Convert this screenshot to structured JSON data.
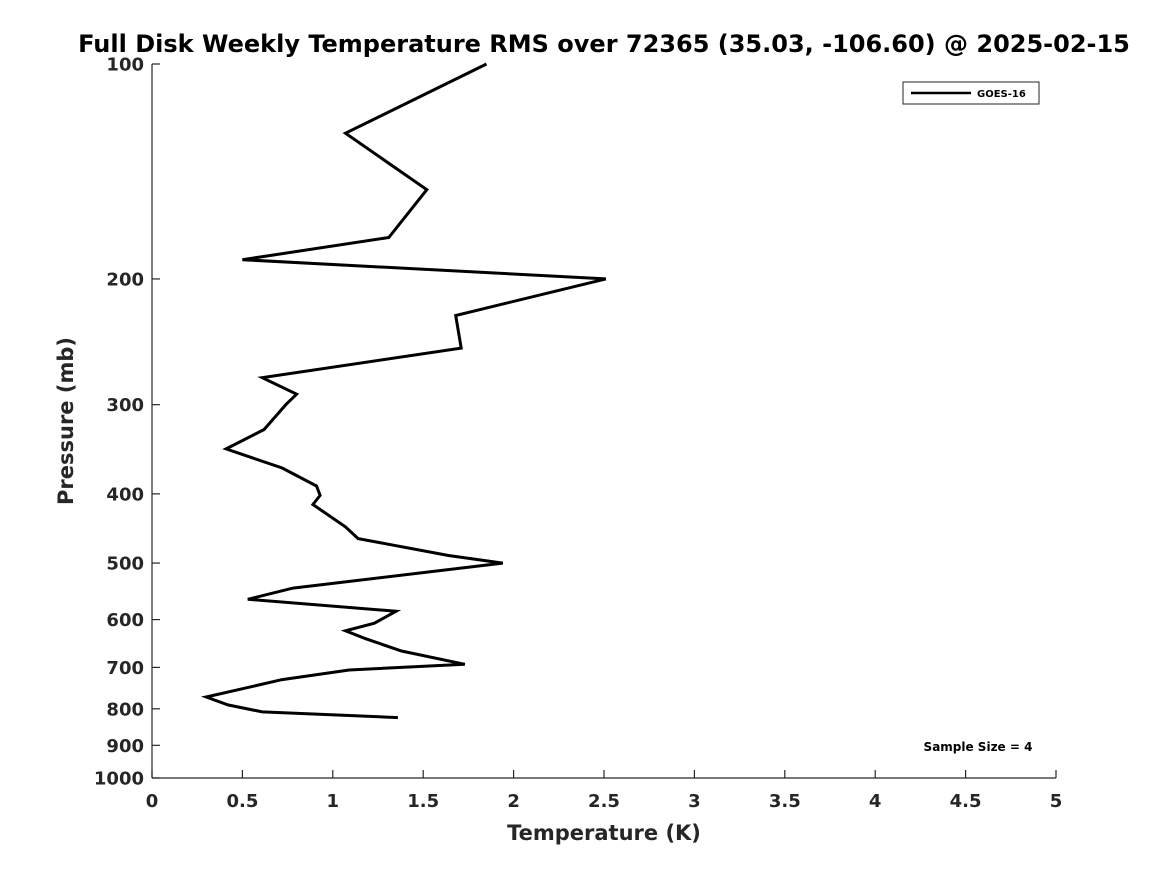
{
  "chart_data": {
    "type": "line",
    "title": "Full Disk Weekly Temperature RMS over 72365 (35.03, -106.60) @ 2025-02-15",
    "xlabel": "Temperature (K)",
    "ylabel": "Pressure (mb)",
    "xlim": [
      0,
      5
    ],
    "ylim": [
      1000,
      100
    ],
    "y_scale": "log",
    "y_inverted": true,
    "grid": false,
    "legend_placement": "top-right",
    "x_ticks": [
      0,
      0.5,
      1,
      1.5,
      2,
      2.5,
      3,
      3.5,
      4,
      4.5,
      5
    ],
    "x_tick_labels": [
      "0",
      "0.5",
      "1",
      "1.5",
      "2",
      "2.5",
      "3",
      "3.5",
      "4",
      "4.5",
      "5"
    ],
    "y_ticks": [
      100,
      200,
      300,
      400,
      500,
      600,
      700,
      800,
      900,
      1000
    ],
    "y_tick_labels": [
      "100",
      "200",
      "300",
      "400",
      "500",
      "600",
      "700",
      "800",
      "900",
      "1000"
    ],
    "series": [
      {
        "name": "GOES-16",
        "color": "#000000",
        "points": [
          {
            "x": 1.85,
            "y": 100
          },
          {
            "x": 1.07,
            "y": 125
          },
          {
            "x": 1.52,
            "y": 150
          },
          {
            "x": 1.31,
            "y": 175
          },
          {
            "x": 0.5,
            "y": 188
          },
          {
            "x": 2.51,
            "y": 200
          },
          {
            "x": 1.68,
            "y": 225
          },
          {
            "x": 1.71,
            "y": 250
          },
          {
            "x": 0.61,
            "y": 275
          },
          {
            "x": 0.8,
            "y": 290
          },
          {
            "x": 0.74,
            "y": 300
          },
          {
            "x": 0.62,
            "y": 325
          },
          {
            "x": 0.41,
            "y": 346
          },
          {
            "x": 0.72,
            "y": 368
          },
          {
            "x": 0.91,
            "y": 390
          },
          {
            "x": 0.93,
            "y": 402
          },
          {
            "x": 0.89,
            "y": 414
          },
          {
            "x": 1.07,
            "y": 445
          },
          {
            "x": 1.14,
            "y": 462
          },
          {
            "x": 1.64,
            "y": 488
          },
          {
            "x": 1.94,
            "y": 500
          },
          {
            "x": 0.78,
            "y": 542
          },
          {
            "x": 0.53,
            "y": 562
          },
          {
            "x": 1.35,
            "y": 584
          },
          {
            "x": 1.23,
            "y": 607
          },
          {
            "x": 1.07,
            "y": 622
          },
          {
            "x": 1.18,
            "y": 638
          },
          {
            "x": 1.38,
            "y": 664
          },
          {
            "x": 1.73,
            "y": 693
          },
          {
            "x": 1.09,
            "y": 706
          },
          {
            "x": 0.72,
            "y": 728
          },
          {
            "x": 0.48,
            "y": 752
          },
          {
            "x": 0.3,
            "y": 770
          },
          {
            "x": 0.42,
            "y": 790
          },
          {
            "x": 0.61,
            "y": 808
          },
          {
            "x": 1.36,
            "y": 823
          }
        ]
      }
    ],
    "annotations": [
      {
        "text": "Sample Size = 4",
        "position": "bottom-right"
      }
    ]
  }
}
